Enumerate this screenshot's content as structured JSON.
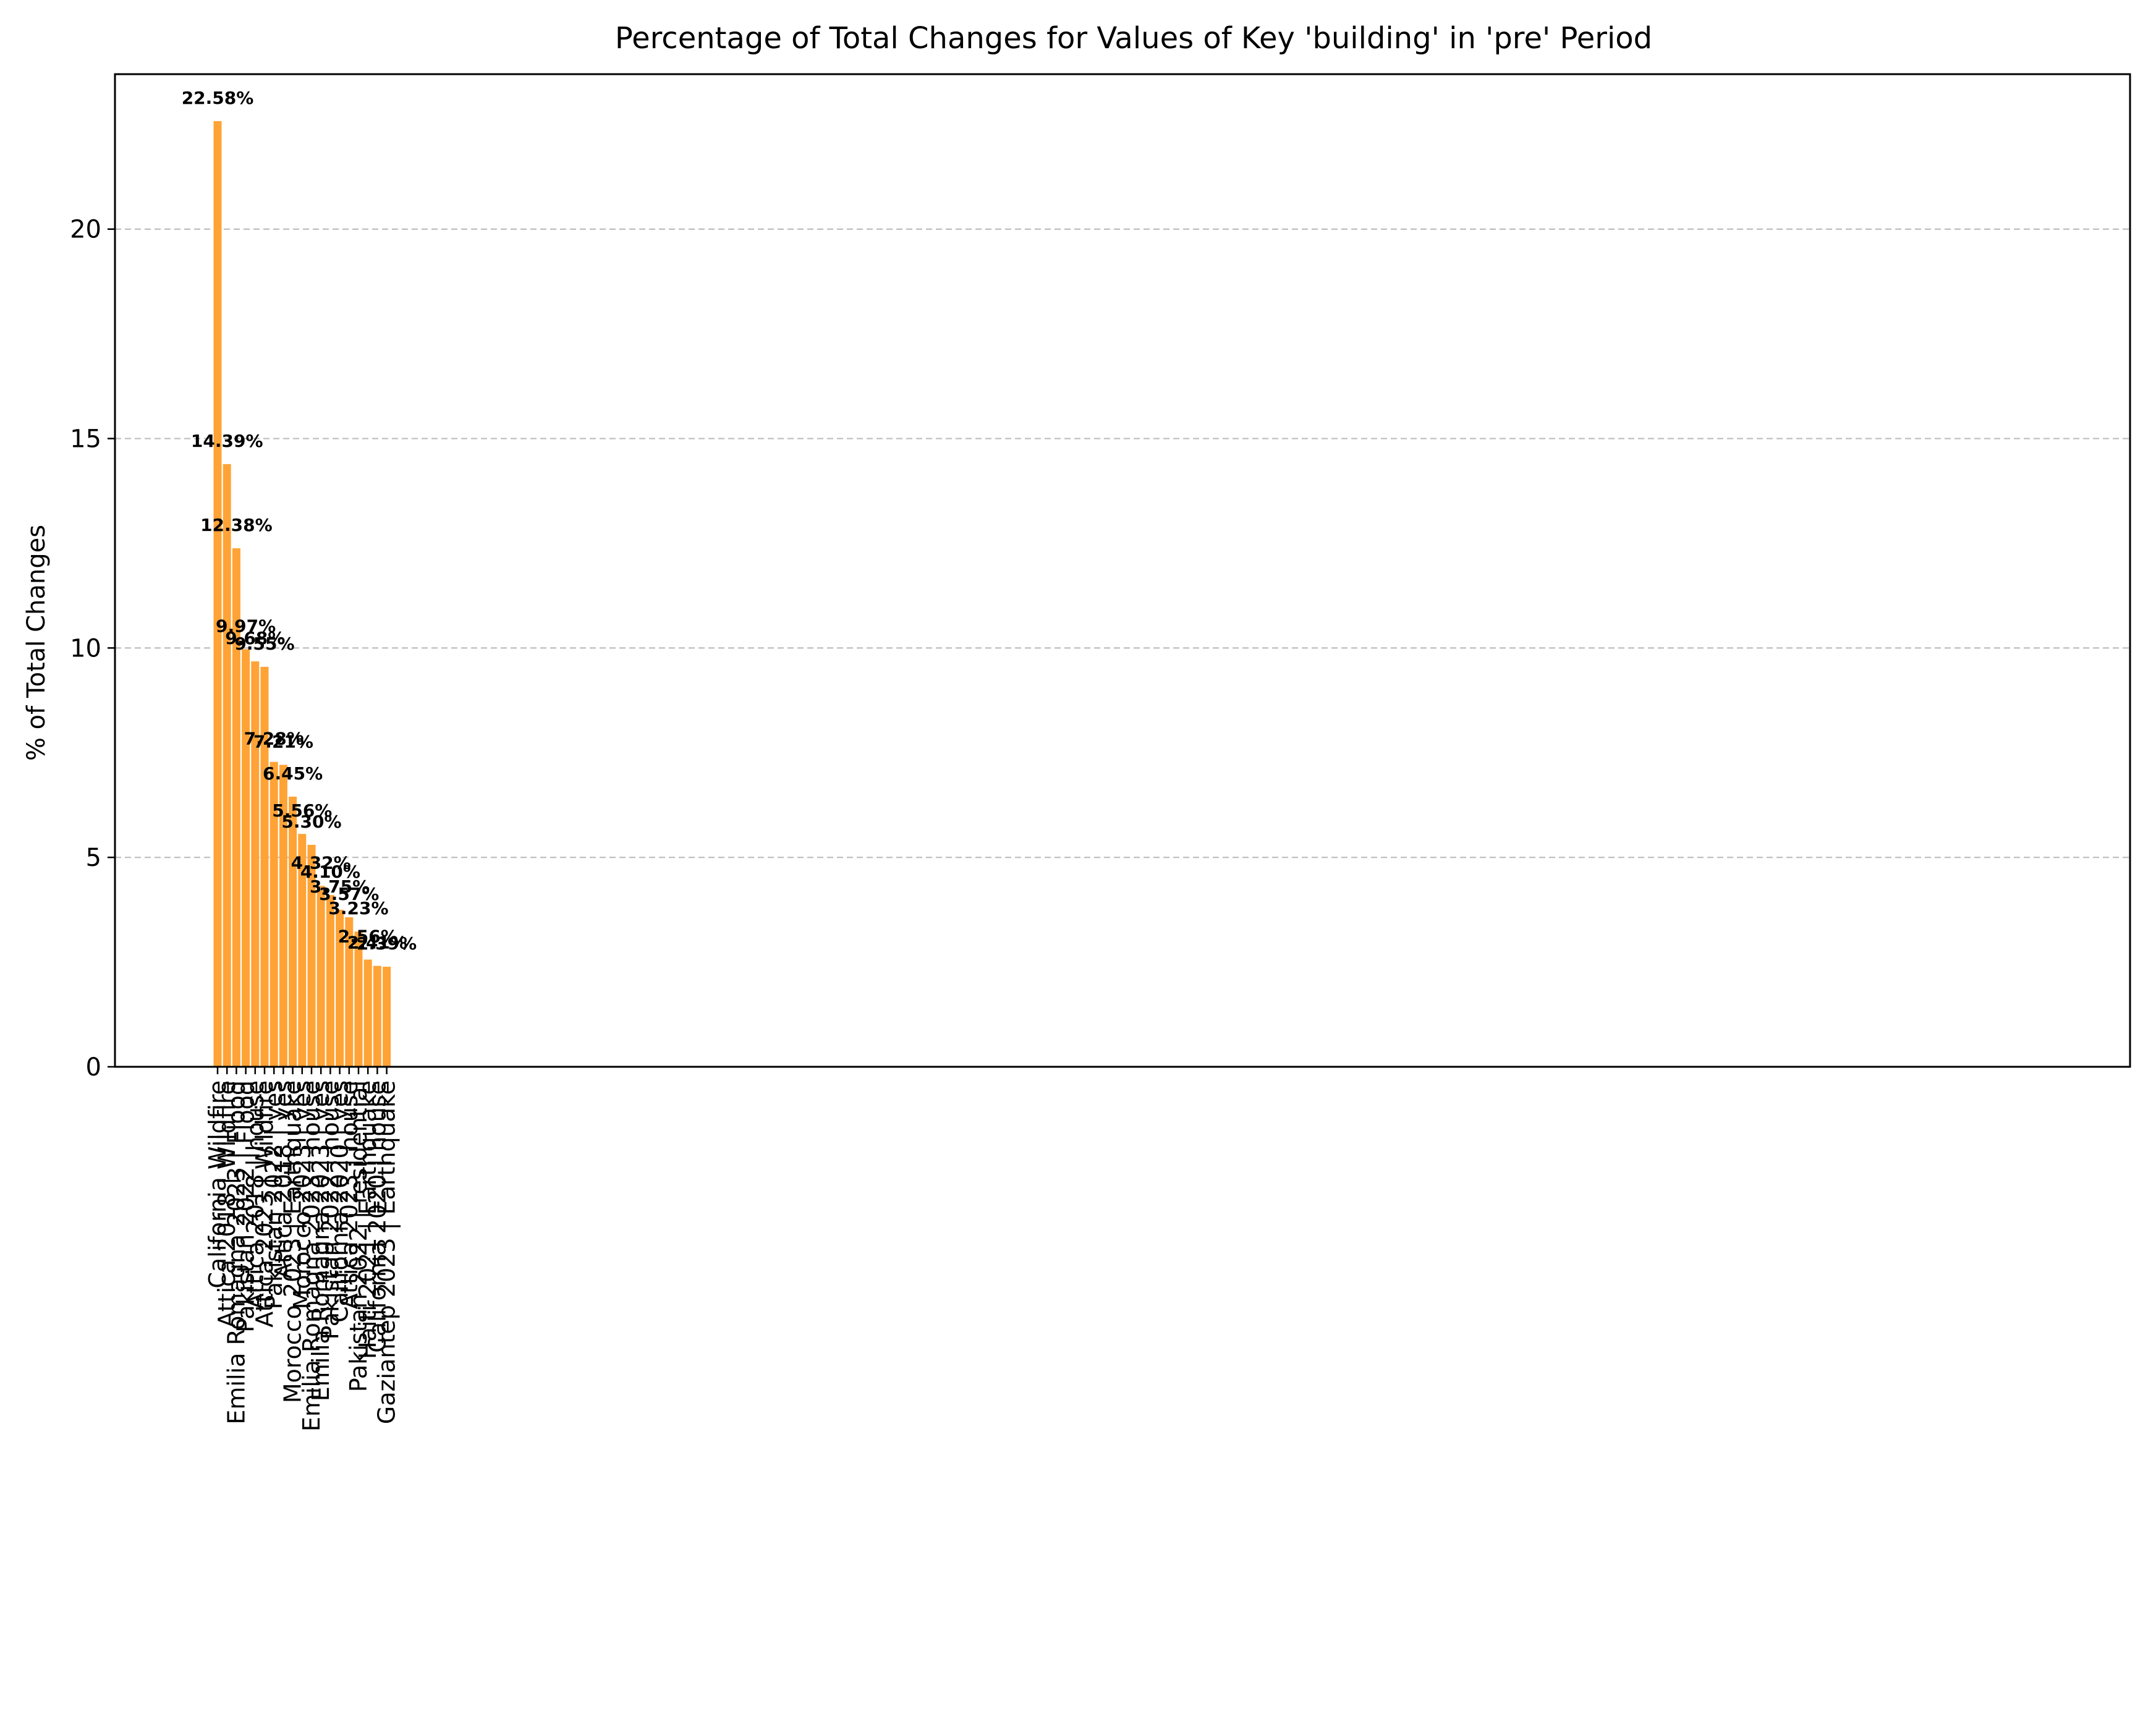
{
  "chart_data": {
    "type": "bar",
    "title": "Percentage of Total Changes for Values of Key 'building' in 'pre' Period",
    "xlabel": "",
    "ylabel": "% of Total Changes",
    "ylim": [
      0,
      23.7
    ],
    "yticks": [
      0,
      5,
      10,
      15,
      20
    ],
    "grid": "y dashed",
    "bar_color": "#ffa336",
    "categories": [
      "California Wildfire",
      "Attica 2018 | Wildfire",
      "Emilia Romagna 2023 | Flood",
      "Pakistan 2022 | Flood",
      "Attica 2018 | house",
      "Attica 2023 | Wildfire",
      "Pakistan 2022 | yes",
      "Attica 2018 | yes",
      "Morocco 2023 | Earthquake",
      "Morocco 2023 | yes",
      "Emilia Romagna 2023 | house",
      "Emilia Romagna 2023 | yes",
      "Pakistan 2022 | house",
      "California 2020 | yes",
      "Attica 2023 | house",
      "Pakistan 2022 | residential",
      "Haiti 2021 | Earthquake",
      "California 2020 | house",
      "Gaziantep 2023 | Earthquake"
    ],
    "values": [
      22.58,
      14.39,
      12.38,
      9.97,
      9.68,
      9.55,
      7.28,
      7.21,
      6.45,
      5.56,
      5.3,
      4.32,
      4.1,
      3.75,
      3.57,
      3.23,
      2.56,
      2.41,
      2.39
    ],
    "data_labels": [
      "22.58%",
      "14.39%",
      "12.38%",
      "9.97%",
      "9.68%",
      "9.55%",
      "7.28%",
      "7.21%",
      "6.45%",
      "5.56%",
      "5.30%",
      "4.32%",
      "4.10%",
      "3.75%",
      "3.57%",
      "3.23%",
      "2.56%",
      "2.41%",
      "2.39%"
    ]
  }
}
